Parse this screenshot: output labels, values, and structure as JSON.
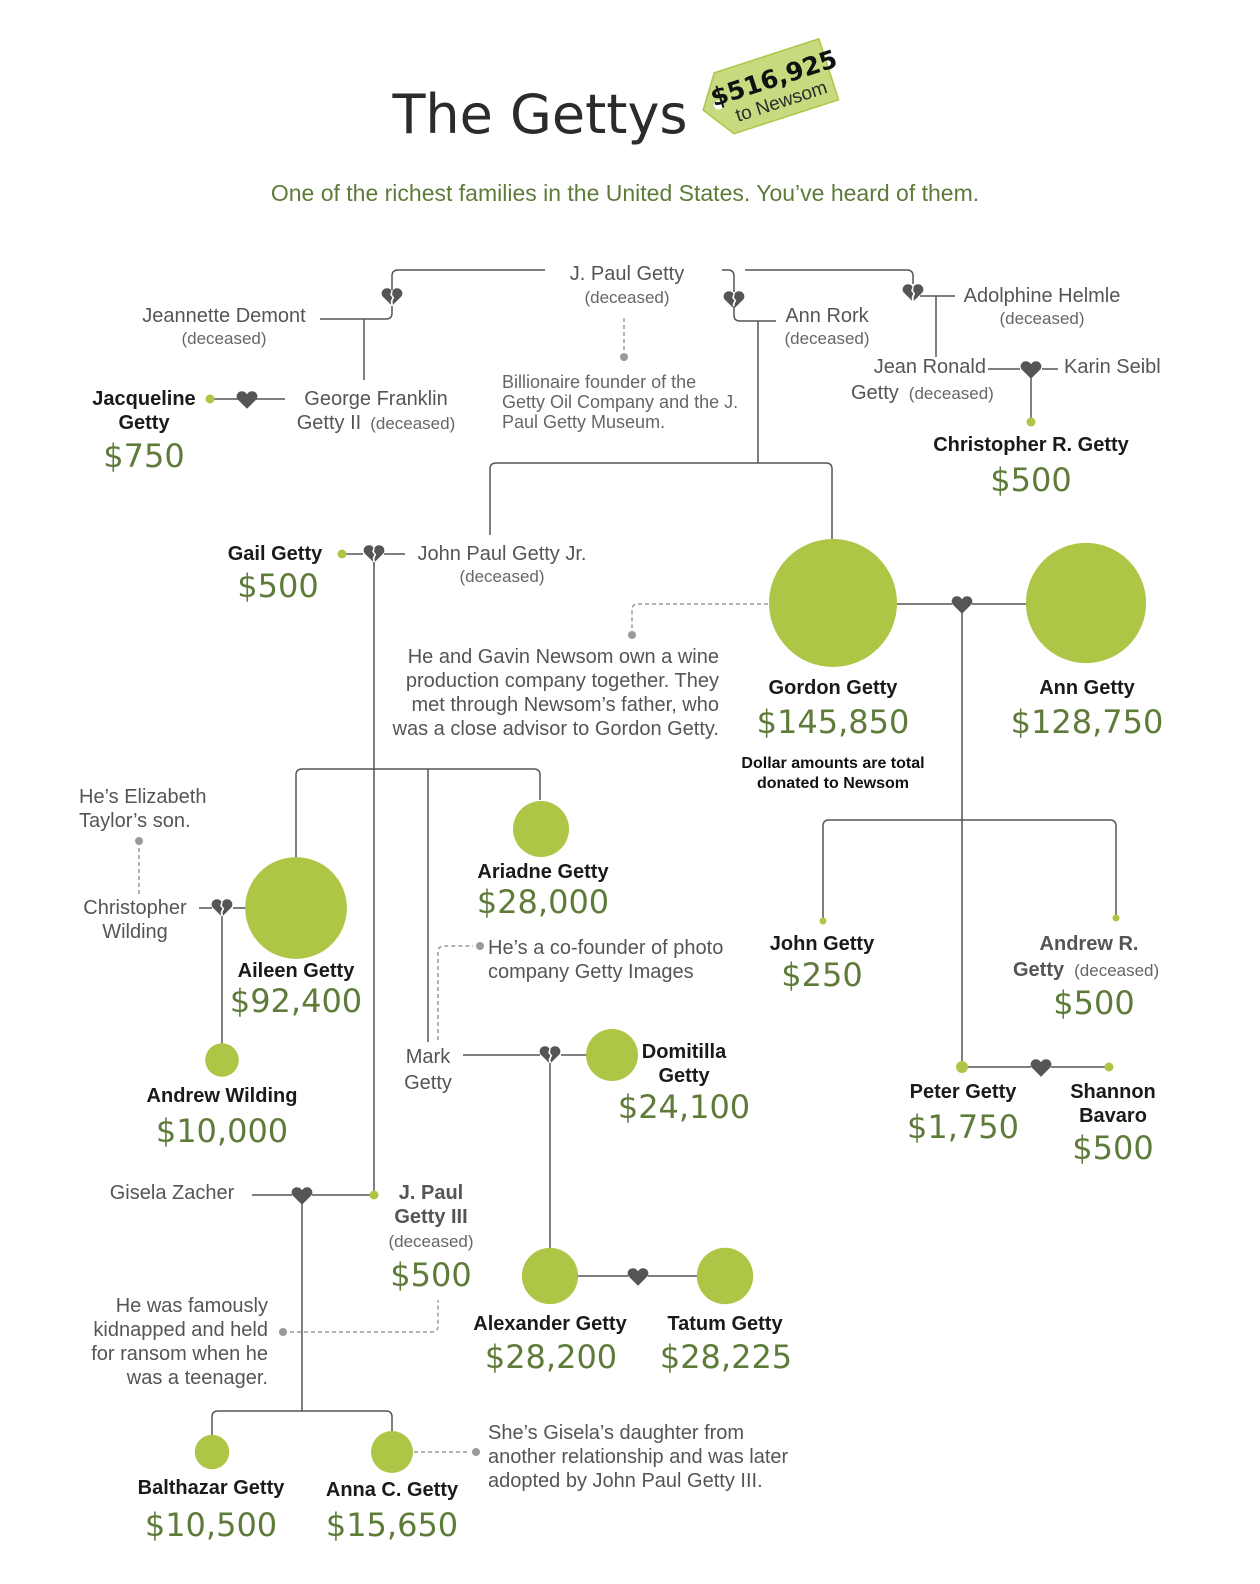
{
  "header": {
    "title": "The Gettys",
    "tag_amount": "$516,925",
    "tag_label": "to Newsom",
    "subtitle": "One of the richest families in the United States. You’ve heard of them."
  },
  "colors": {
    "accent": "#aec646",
    "money": "#5e7b3a",
    "line": "#555555"
  },
  "people": {
    "jpaul": {
      "name": "J. Paul Getty",
      "status": "(deceased)"
    },
    "jeannette": {
      "name": "Jeannette Demont",
      "status": "(deceased)"
    },
    "annrork": {
      "name": "Ann Rork",
      "status": "(deceased)"
    },
    "adolphine": {
      "name": "Adolphine Helmle",
      "status": "(deceased)"
    },
    "jeanronald": {
      "name1": "Jean Ronald",
      "name2": "Getty",
      "status": "(deceased)"
    },
    "karin": {
      "name": "Karin Seibl"
    },
    "george": {
      "name1": "George Franklin",
      "name2": "Getty II",
      "status": "(deceased)"
    },
    "jacqueline": {
      "name1": "Jacqueline",
      "name2": "Getty",
      "amount": "$750"
    },
    "christopherR": {
      "name": "Christopher R. Getty",
      "amount": "$500"
    },
    "gail": {
      "name": "Gail Getty",
      "amount": "$500"
    },
    "jpjr": {
      "name": "John Paul Getty Jr.",
      "status": "(deceased)"
    },
    "gordon": {
      "name": "Gordon Getty",
      "amount": "$145,850",
      "value": 145850
    },
    "ann": {
      "name": "Ann Getty",
      "amount": "$128,750",
      "value": 128750
    },
    "ariadne": {
      "name": "Ariadne Getty",
      "amount": "$28,000",
      "value": 28000
    },
    "aileen": {
      "name": "Aileen Getty",
      "amount": "$92,400",
      "value": 92400
    },
    "chriswilding": {
      "name1": "Christopher",
      "name2": "Wilding"
    },
    "andrewwilding": {
      "name": "Andrew Wilding",
      "amount": "$10,000",
      "value": 10000
    },
    "mark": {
      "name1": "Mark",
      "name2": "Getty"
    },
    "domitilla": {
      "name1": "Domitilla",
      "name2": "Getty",
      "amount": "$24,100",
      "value": 24100
    },
    "johngetty": {
      "name": "John Getty",
      "amount": "$250"
    },
    "andrewR": {
      "name1": "Andrew R.",
      "name2": "Getty",
      "status": "(deceased)",
      "amount": "$500"
    },
    "peter": {
      "name": "Peter Getty",
      "amount": "$1,750"
    },
    "shannon": {
      "name1": "Shannon",
      "name2": "Bavaro",
      "amount": "$500"
    },
    "gisela": {
      "name": "Gisela Zacher"
    },
    "jp3": {
      "name1": "J. Paul",
      "name2": "Getty III",
      "status": "(deceased)",
      "amount": "$500"
    },
    "alexander": {
      "name": "Alexander Getty",
      "amount": "$28,200",
      "value": 28200
    },
    "tatum": {
      "name": "Tatum Getty",
      "amount": "$28,225",
      "value": 28225
    },
    "balthazar": {
      "name": "Balthazar Getty",
      "amount": "$10,500",
      "value": 10500
    },
    "annaC": {
      "name": "Anna C. Getty",
      "amount": "$15,650",
      "value": 15650
    }
  },
  "notes": {
    "jpaul": [
      "Billionaire founder of the",
      "Getty Oil Company and the J.",
      "Paul Getty Museum."
    ],
    "gordon": [
      "He and Gavin Newsom own a wine",
      "production company together. They",
      "met through Newsom’s father, who",
      "was a close advisor to Gordon Getty."
    ],
    "caption": [
      "Dollar amounts are total",
      "donated to Newsom"
    ],
    "elizabeth": [
      "He’s Elizabeth",
      "Taylor’s son."
    ],
    "mark": [
      "He’s a co-founder of photo",
      "company Getty Images"
    ],
    "kidnap": [
      "He was famously",
      "kidnapped and held",
      "for ransom when he",
      "was a teenager."
    ],
    "anna": [
      "She’s Gisela’s daughter from",
      "another relationship and was later",
      "adopted by John Paul Getty III."
    ]
  }
}
